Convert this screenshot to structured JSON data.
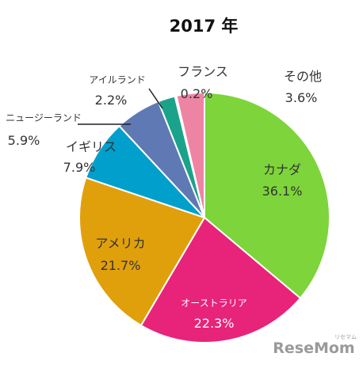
{
  "chart_data": {
    "type": "pie",
    "title": "2017 年",
    "slices": [
      {
        "label": "カナダ",
        "value": 36.1,
        "value_label": "36.1%",
        "color": "#7dd43b"
      },
      {
        "label": "オーストラリア",
        "value": 22.3,
        "value_label": "22.3%",
        "color": "#e8237a"
      },
      {
        "label": "アメリカ",
        "value": 21.7,
        "value_label": "21.7%",
        "color": "#e0a00b"
      },
      {
        "label": "イギリス",
        "value": 7.9,
        "value_label": "7.9%",
        "color": "#009fcc"
      },
      {
        "label": "ニュージーランド",
        "value": 5.9,
        "value_label": "5.9%",
        "color": "#5f79b4"
      },
      {
        "label": "アイルランド",
        "value": 2.2,
        "value_label": "2.2%",
        "color": "#1aa38a"
      },
      {
        "label": "フランス",
        "value": 0.2,
        "value_label": "0.2%",
        "color": "#7d3f98"
      },
      {
        "label": "その他",
        "value": 3.6,
        "value_label": "3.6%",
        "color": "#ee84a4"
      }
    ]
  },
  "watermark": {
    "brand": "ReseMom",
    "sub": "リセマム"
  }
}
